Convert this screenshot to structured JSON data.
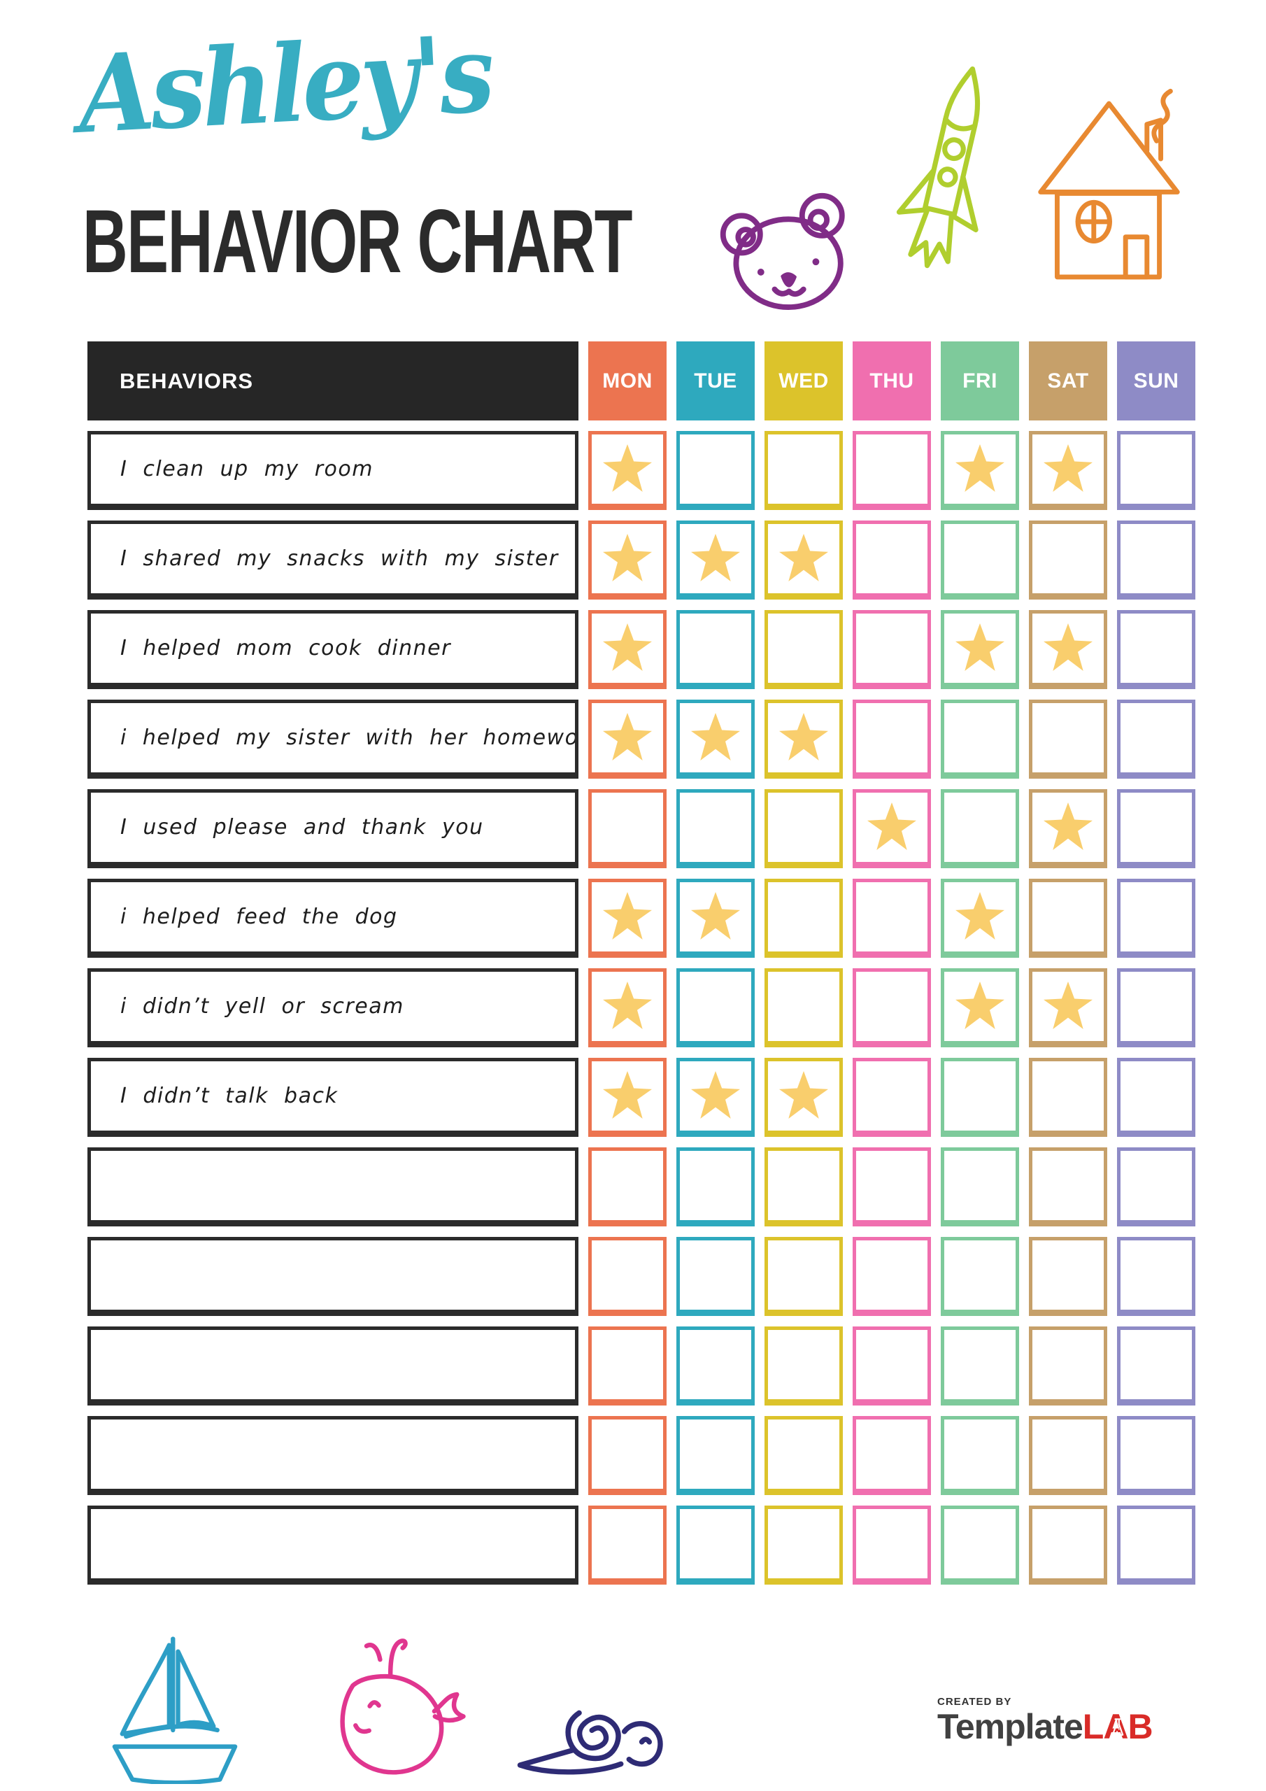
{
  "header": {
    "script_title": "Ashley's",
    "main_title": "BEHAVIOR CHART"
  },
  "decor": {
    "top": [
      {
        "icon": "bear-doodle",
        "color": "#802C87"
      },
      {
        "icon": "rocket-doodle",
        "color": "#B0CE2E"
      },
      {
        "icon": "house-doodle",
        "color": "#E88931"
      }
    ],
    "bottom": [
      {
        "icon": "sailboat-doodle",
        "color": "#2D9EC6"
      },
      {
        "icon": "whale-doodle",
        "color": "#E0368F"
      },
      {
        "icon": "snail-doodle",
        "color": "#2E2B75"
      }
    ]
  },
  "table": {
    "behaviors_header": "BEHAVIORS",
    "header_bg": "#262626",
    "star_color": "#F9CE6D",
    "days": [
      {
        "label": "MON",
        "color": "#EC7450"
      },
      {
        "label": "TUE",
        "color": "#2EA9BE"
      },
      {
        "label": "WED",
        "color": "#DCC32B"
      },
      {
        "label": "THU",
        "color": "#F06FAF"
      },
      {
        "label": "FRI",
        "color": "#7ECA9B"
      },
      {
        "label": "SAT",
        "color": "#C6A06A"
      },
      {
        "label": "SUN",
        "color": "#8E8BC6"
      }
    ],
    "rows": [
      {
        "label": "I clean up my room",
        "stars": [
          "MON",
          "FRI",
          "SAT"
        ]
      },
      {
        "label": "I shared my snacks with my sister",
        "stars": [
          "MON",
          "TUE",
          "WED"
        ]
      },
      {
        "label": "I helped mom cook dinner",
        "stars": [
          "MON",
          "FRI",
          "SAT"
        ]
      },
      {
        "label": "i helped my sister with her homework",
        "stars": [
          "MON",
          "TUE",
          "WED"
        ]
      },
      {
        "label": "I used please and thank you",
        "stars": [
          "THU",
          "SAT"
        ]
      },
      {
        "label": "i helped feed the dog",
        "stars": [
          "MON",
          "TUE",
          "FRI"
        ]
      },
      {
        "label": "i didn’t yell or scream",
        "stars": [
          "MON",
          "FRI",
          "SAT"
        ]
      },
      {
        "label": "I didn’t talk back",
        "stars": [
          "MON",
          "TUE",
          "WED"
        ]
      },
      {
        "label": "",
        "stars": []
      },
      {
        "label": "",
        "stars": []
      },
      {
        "label": "",
        "stars": []
      },
      {
        "label": "",
        "stars": []
      },
      {
        "label": "",
        "stars": []
      }
    ]
  },
  "footer": {
    "created_by": "CREATED BY",
    "brand_dark": "Template",
    "brand_red": "LAB"
  }
}
